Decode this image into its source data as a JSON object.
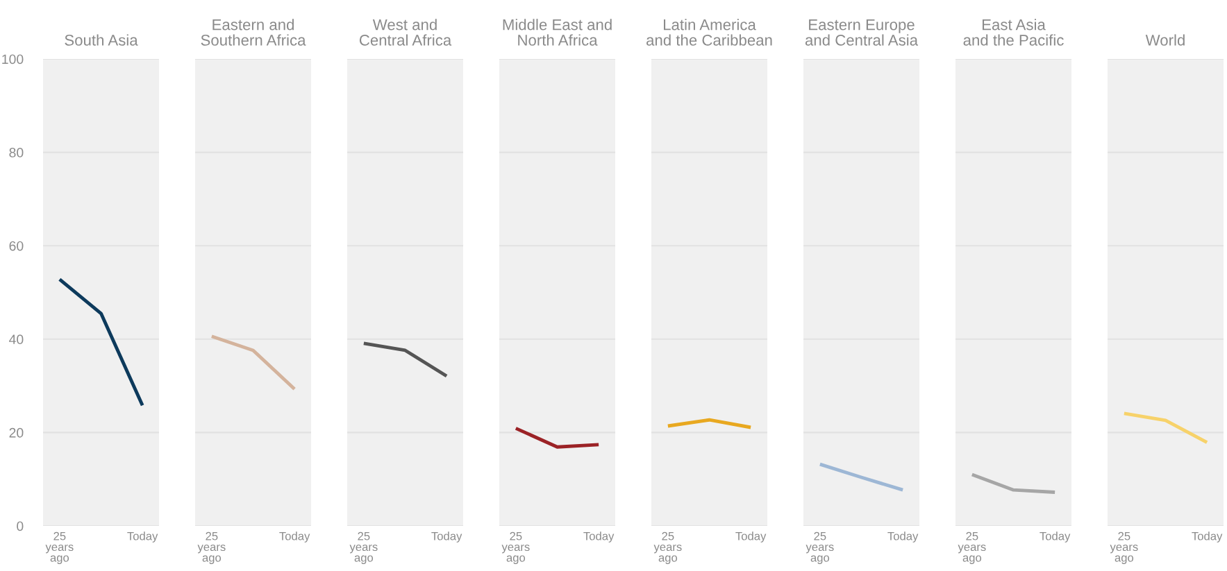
{
  "chart_data": [
    {
      "type": "line",
      "title": "South Asia",
      "categories": [
        "25 years ago",
        null,
        "Today"
      ],
      "values": [
        52.8,
        45.5,
        25.8
      ],
      "color": "#0d3a5c",
      "ylim": [
        0,
        100
      ],
      "yticks": [
        0,
        20,
        40,
        60,
        80,
        100
      ],
      "grid": "y"
    },
    {
      "type": "line",
      "title": "Eastern and\nSouthern Africa",
      "categories": [
        "25 years ago",
        null,
        "Today"
      ],
      "values": [
        40.6,
        37.6,
        29.3
      ],
      "color": "#d4b39c",
      "ylim": [
        0,
        100
      ],
      "yticks": [
        0,
        20,
        40,
        60,
        80,
        100
      ],
      "grid": "y",
      "tick_labels": "x"
    },
    {
      "type": "line",
      "title": "West and\nCentral Africa",
      "categories": [
        "25 years ago",
        null,
        "Today"
      ],
      "values": [
        39.1,
        37.6,
        32.1
      ],
      "color": "#555555",
      "ylim": [
        0,
        100
      ],
      "yticks": [
        0,
        20,
        40,
        60,
        80,
        100
      ],
      "grid": "y",
      "tick_labels": "x"
    },
    {
      "type": "line",
      "title": "Middle East and\nNorth Africa",
      "categories": [
        "25 years ago",
        null,
        "Today"
      ],
      "values": [
        20.9,
        16.9,
        17.4
      ],
      "color": "#9b2226",
      "ylim": [
        0,
        100
      ],
      "yticks": [
        0,
        20,
        40,
        60,
        80,
        100
      ],
      "grid": "y",
      "tick_labels": "x"
    },
    {
      "type": "line",
      "title": "Latin America\nand the Caribbean",
      "categories": [
        "25 years ago",
        null,
        "Today"
      ],
      "values": [
        21.4,
        22.7,
        21.1
      ],
      "color": "#e8a820",
      "ylim": [
        0,
        100
      ],
      "yticks": [
        0,
        20,
        40,
        60,
        80,
        100
      ],
      "grid": "y",
      "tick_labels": "x"
    },
    {
      "type": "line",
      "title": "Eastern Europe\nand Central Asia",
      "categories": [
        "25 years ago",
        null,
        "Today"
      ],
      "values": [
        13.2,
        10.4,
        7.7
      ],
      "color": "#9db7d5",
      "ylim": [
        0,
        100
      ],
      "yticks": [
        0,
        20,
        40,
        60,
        80,
        100
      ],
      "grid": "y",
      "tick_labels": "x"
    },
    {
      "type": "line",
      "title": "East Asia\nand the Pacific",
      "categories": [
        "25 years ago",
        null,
        "Today"
      ],
      "values": [
        11.0,
        7.7,
        7.2
      ],
      "color": "#a6a6a6",
      "ylim": [
        0,
        100
      ],
      "yticks": [
        0,
        20,
        40,
        60,
        80,
        100
      ],
      "grid": "y",
      "tick_labels": "x"
    },
    {
      "type": "line",
      "title": "World",
      "categories": [
        "25 years ago",
        null,
        "Today"
      ],
      "values": [
        24.1,
        22.6,
        17.9
      ],
      "color": "#f7d26a",
      "ylim": [
        0,
        100
      ],
      "yticks": [
        0,
        20,
        40,
        60,
        80,
        100
      ],
      "grid": "y",
      "tick_labels": "x"
    }
  ]
}
